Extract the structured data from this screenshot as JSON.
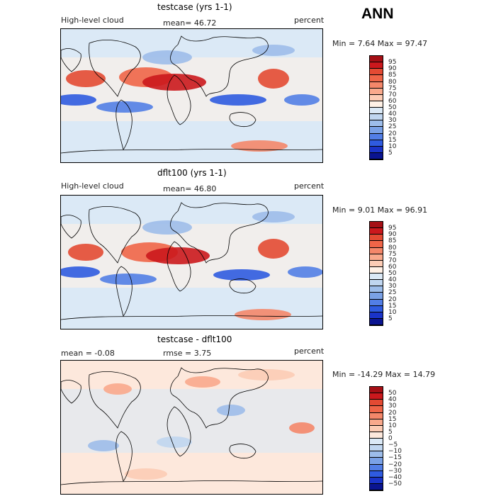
{
  "season": "ANN",
  "chart_data": [
    {
      "type": "heatmap",
      "title": "testcase (yrs 1-1)",
      "variable": "High-level cloud",
      "units": "percent",
      "mean_text": "mean=  46.72",
      "minmax_text": "Min =   7.64 Max =  97.47",
      "colorbar": {
        "levels": [
          "95",
          "90",
          "85",
          "80",
          "75",
          "70",
          "60",
          "50",
          "40",
          "30",
          "25",
          "20",
          "15",
          "10",
          "5"
        ],
        "colors": [
          "#a50f15",
          "#cb181d",
          "#e34a33",
          "#ef6548",
          "#f4876a",
          "#f9a98c",
          "#fcccb5",
          "#fff1e6",
          "#dbe9f6",
          "#c0d6f0",
          "#9dbdea",
          "#7aa1e6",
          "#527ee6",
          "#2f5be0",
          "#1a33c8",
          "#0a1490"
        ]
      }
    },
    {
      "type": "heatmap",
      "title": "dflt100 (yrs 1-1)",
      "variable": "High-level cloud",
      "units": "percent",
      "mean_text": "mean=  46.80",
      "minmax_text": "Min =   9.01 Max =  96.91",
      "colorbar": {
        "levels": [
          "95",
          "90",
          "85",
          "80",
          "75",
          "70",
          "60",
          "50",
          "40",
          "30",
          "25",
          "20",
          "15",
          "10",
          "5"
        ],
        "colors": [
          "#a50f15",
          "#cb181d",
          "#e34a33",
          "#ef6548",
          "#f4876a",
          "#f9a98c",
          "#fcccb5",
          "#fff1e6",
          "#dbe9f6",
          "#c0d6f0",
          "#9dbdea",
          "#7aa1e6",
          "#527ee6",
          "#2f5be0",
          "#1a33c8",
          "#0a1490"
        ]
      }
    },
    {
      "type": "heatmap",
      "title": "testcase - dflt100",
      "units": "percent",
      "mean_text": "mean =   -0.08",
      "rmse_text": "rmse =    3.75",
      "minmax_text": "Min = -14.29 Max =  14.79",
      "colorbar": {
        "levels": [
          "50",
          "40",
          "30",
          "20",
          "15",
          "10",
          "5",
          "0",
          "−5",
          "−10",
          "−15",
          "−20",
          "−30",
          "−40",
          "−50"
        ],
        "colors": [
          "#a50f15",
          "#cb181d",
          "#e34a33",
          "#ef6548",
          "#f4876a",
          "#f9a98c",
          "#fcccb5",
          "#fde8dc",
          "#dbe9f6",
          "#c0d6f0",
          "#9dbdea",
          "#7aa1e6",
          "#527ee6",
          "#2f5be0",
          "#1a33c8",
          "#0a1490"
        ]
      }
    }
  ]
}
